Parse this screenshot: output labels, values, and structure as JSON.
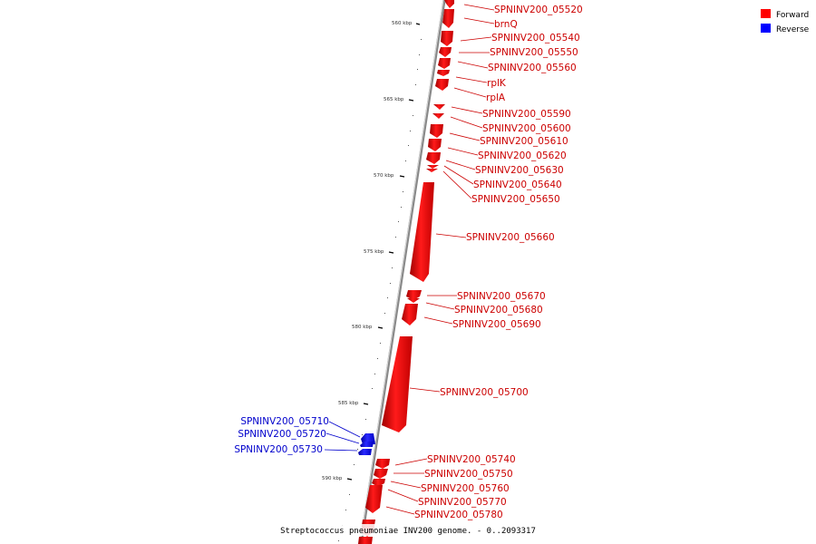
{
  "caption": "Streptococcus pneumoniae INV200 genome. - 0..2093317",
  "legend": {
    "forward_label": "Forward",
    "reverse_label": "Reverse",
    "forward_color": "#ff0000",
    "reverse_color": "#0000ff"
  },
  "ticks": [
    {
      "label": "560 kbp",
      "kbp": 560
    },
    {
      "label": "565 kbp",
      "kbp": 565
    },
    {
      "label": "570 kbp",
      "kbp": 570
    },
    {
      "label": "575 kbp",
      "kbp": 575
    },
    {
      "label": "580 kbp",
      "kbp": 580
    },
    {
      "label": "585 kbp",
      "kbp": 585
    },
    {
      "label": "590 kbp",
      "kbp": 590
    }
  ],
  "genes": [
    {
      "name": "SPNINV200_05520",
      "strand": "forward"
    },
    {
      "name": "brnQ",
      "strand": "forward"
    },
    {
      "name": "SPNINV200_05540",
      "strand": "forward"
    },
    {
      "name": "SPNINV200_05550",
      "strand": "forward"
    },
    {
      "name": "SPNINV200_05560",
      "strand": "forward"
    },
    {
      "name": "rplK",
      "strand": "forward"
    },
    {
      "name": "rplA",
      "strand": "forward"
    },
    {
      "name": "SPNINV200_05590",
      "strand": "forward"
    },
    {
      "name": "SPNINV200_05600",
      "strand": "forward"
    },
    {
      "name": "SPNINV200_05610",
      "strand": "forward"
    },
    {
      "name": "SPNINV200_05620",
      "strand": "forward"
    },
    {
      "name": "SPNINV200_05630",
      "strand": "forward"
    },
    {
      "name": "SPNINV200_05640",
      "strand": "forward"
    },
    {
      "name": "SPNINV200_05650",
      "strand": "forward"
    },
    {
      "name": "SPNINV200_05660",
      "strand": "forward"
    },
    {
      "name": "SPNINV200_05670",
      "strand": "forward"
    },
    {
      "name": "SPNINV200_05680",
      "strand": "forward"
    },
    {
      "name": "SPNINV200_05690",
      "strand": "forward"
    },
    {
      "name": "SPNINV200_05700",
      "strand": "forward"
    },
    {
      "name": "SPNINV200_05710",
      "strand": "reverse"
    },
    {
      "name": "SPNINV200_05720",
      "strand": "reverse"
    },
    {
      "name": "SPNINV200_05730",
      "strand": "reverse"
    },
    {
      "name": "SPNINV200_05740",
      "strand": "forward"
    },
    {
      "name": "SPNINV200_05750",
      "strand": "forward"
    },
    {
      "name": "SPNINV200_05760",
      "strand": "forward"
    },
    {
      "name": "SPNINV200_05770",
      "strand": "forward"
    },
    {
      "name": "SPNINV200_05780",
      "strand": "forward"
    }
  ]
}
